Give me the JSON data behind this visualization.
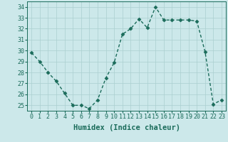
{
  "x": [
    0,
    1,
    2,
    3,
    4,
    5,
    6,
    7,
    8,
    9,
    10,
    11,
    12,
    13,
    14,
    15,
    16,
    17,
    18,
    19,
    20,
    21,
    22,
    23
  ],
  "y": [
    29.8,
    29.0,
    28.0,
    27.2,
    26.1,
    25.0,
    25.0,
    24.7,
    25.5,
    27.5,
    28.9,
    31.5,
    32.0,
    32.9,
    32.1,
    34.0,
    32.8,
    32.8,
    32.8,
    32.8,
    32.7,
    29.9,
    25.1,
    25.5
  ],
  "line_color": "#1a6b5a",
  "marker": "D",
  "markersize": 2.5,
  "linewidth": 1.0,
  "background_color": "#cce8ea",
  "grid_color": "#aacfcf",
  "xlabel": "Humidex (Indice chaleur)",
  "xlabel_fontsize": 7.5,
  "tick_fontsize": 6,
  "ylim": [
    24.5,
    34.5
  ],
  "xlim": [
    -0.5,
    23.5
  ],
  "yticks": [
    25,
    26,
    27,
    28,
    29,
    30,
    31,
    32,
    33,
    34
  ],
  "xticks": [
    0,
    1,
    2,
    3,
    4,
    5,
    6,
    7,
    8,
    9,
    10,
    11,
    12,
    13,
    14,
    15,
    16,
    17,
    18,
    19,
    20,
    21,
    22,
    23
  ]
}
